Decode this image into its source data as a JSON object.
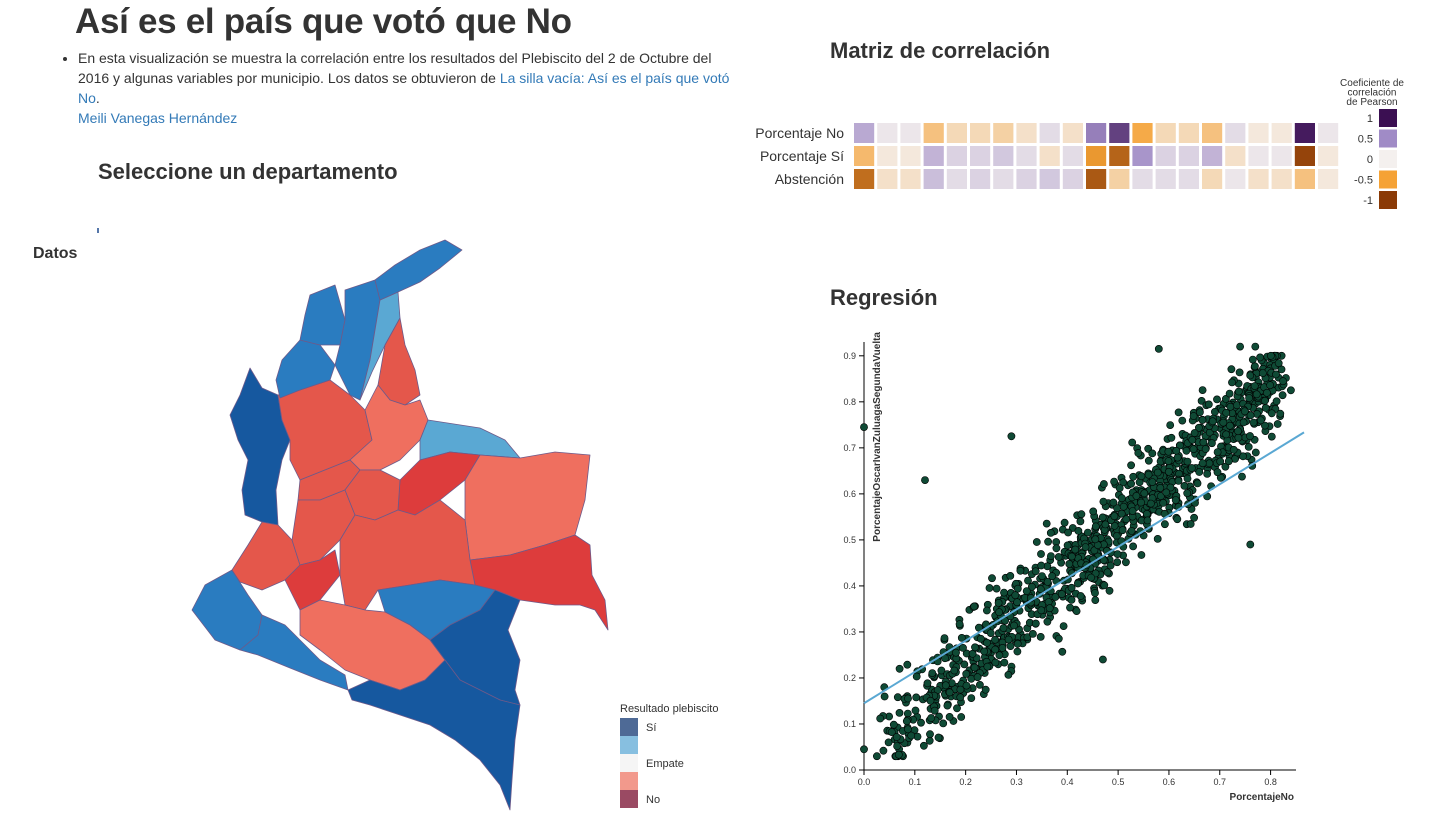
{
  "header": {
    "title": "Así es el país que votó que No",
    "intro_text_before": "En esta visualización se muestra la correlación entre los resultados del Plebiscito del 2 de Octubre del 2016 y algunas variables por municipio. Los datos se obtuvieron de ",
    "intro_link": "La silla vacía: Así es el país que votó No",
    "intro_text_after": ".",
    "author_link": "Meili Vanegas Hernández"
  },
  "map_section": {
    "title": "Seleccione un departamento",
    "data_label": "Datos",
    "legend": {
      "title": "Resultado plebiscito",
      "items": [
        {
          "label": "Sí",
          "color": "#4e6a96"
        },
        {
          "label": "",
          "color": "#87bfe0"
        },
        {
          "label": "Empate",
          "color": "#f5f5f5"
        },
        {
          "label": "",
          "color": "#f2998c"
        },
        {
          "label": "No",
          "color": "#9a4a63"
        }
      ]
    },
    "colors": {
      "strong_yes": "#16589f",
      "yes": "#2a7cc0",
      "light_yes": "#5aa8d3",
      "no": "#e4574b",
      "light_no": "#ef6f5f",
      "strong_no": "#dd3c3c"
    }
  },
  "matrix": {
    "title": "Matriz de correlación",
    "rows": [
      {
        "label": "Porcentaje No",
        "values": [
          0.35,
          0.05,
          0.05,
          -0.3,
          -0.15,
          -0.15,
          -0.2,
          -0.1,
          0.1,
          -0.1,
          0.55,
          0.8,
          -0.45,
          -0.15,
          -0.15,
          -0.3,
          0.1,
          -0.05,
          -0.05,
          0.95,
          0.05
        ]
      },
      {
        "label": "Porcentaje Sí",
        "values": [
          -0.35,
          -0.05,
          -0.05,
          0.3,
          0.15,
          0.15,
          0.2,
          0.1,
          -0.1,
          0.1,
          -0.55,
          -0.8,
          0.45,
          0.15,
          0.15,
          0.3,
          -0.1,
          0.05,
          0.05,
          -0.95,
          -0.05
        ]
      },
      {
        "label": "Abstención",
        "values": [
          -0.75,
          -0.1,
          -0.1,
          0.25,
          0.1,
          0.15,
          0.1,
          0.15,
          0.2,
          0.15,
          -0.85,
          -0.2,
          0.1,
          0.1,
          0.1,
          -0.15,
          0.05,
          -0.1,
          -0.1,
          -0.3,
          -0.05
        ]
      }
    ],
    "legend": {
      "title_lines": [
        "Coeficiente de",
        "correlación",
        "de Pearson"
      ],
      "items": [
        {
          "label": "1",
          "color": "#3b0f52"
        },
        {
          "label": "0.5",
          "color": "#a08bc6"
        },
        {
          "label": "0",
          "color": "#f4f0ee"
        },
        {
          "label": "-0.5",
          "color": "#f5a235"
        },
        {
          "label": "-1",
          "color": "#8a3a06"
        }
      ]
    }
  },
  "chart_data": {
    "type": "scatter",
    "title": "Regresión",
    "xlabel": "PorcentajeNo",
    "ylabel": "PorcentajeOscarIvanZuluagaSegundaVuelta",
    "xlim": [
      0,
      0.85
    ],
    "ylim": [
      0,
      0.93
    ],
    "x_ticks": [
      "0.0",
      "0.1",
      "0.2",
      "0.3",
      "0.4",
      "0.5",
      "0.6",
      "0.7",
      "0.8"
    ],
    "y_ticks": [
      "0.0",
      "0.1",
      "0.2",
      "0.3",
      "0.4",
      "0.5",
      "0.6",
      "0.7",
      "0.8",
      "0.9"
    ],
    "point_color": "#0f4a35",
    "regression": {
      "intercept": 0.145,
      "slope": 0.68,
      "color": "#5aa8d3"
    },
    "n_points": 1100,
    "highlight_points": [
      {
        "x": 0.0,
        "y": 0.745
      },
      {
        "x": 0.0,
        "y": 0.045
      },
      {
        "x": 0.12,
        "y": 0.63
      },
      {
        "x": 0.29,
        "y": 0.725
      },
      {
        "x": 0.58,
        "y": 0.915
      },
      {
        "x": 0.76,
        "y": 0.49
      },
      {
        "x": 0.84,
        "y": 0.825
      },
      {
        "x": 0.77,
        "y": 0.92
      },
      {
        "x": 0.74,
        "y": 0.92
      },
      {
        "x": 0.04,
        "y": 0.18
      },
      {
        "x": 0.07,
        "y": 0.22
      },
      {
        "x": 0.47,
        "y": 0.24
      }
    ]
  }
}
